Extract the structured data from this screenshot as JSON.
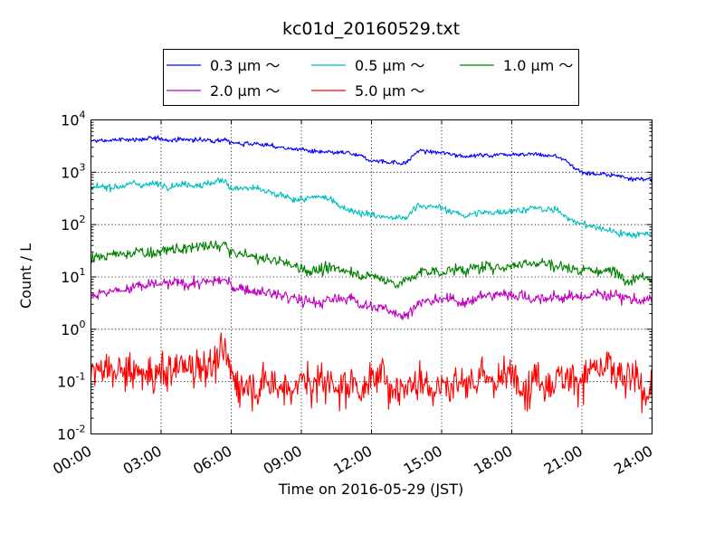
{
  "chart_data": {
    "type": "line",
    "title": "kc01d_20160529.txt",
    "xlabel": "Time on 2016-05-29 (JST)",
    "ylabel": "Count / L",
    "yscale": "log",
    "xlim": [
      "2016-05-29 00:00",
      "2016-05-30 00:00"
    ],
    "ylim": [
      0.01,
      10000
    ],
    "x_ticks": [
      "00:00",
      "03:00",
      "06:00",
      "09:00",
      "12:00",
      "15:00",
      "18:00",
      "21:00",
      "24:00"
    ],
    "y_ticks": [
      {
        "base": "10",
        "exp": "-2",
        "value": 0.01
      },
      {
        "base": "10",
        "exp": "-1",
        "value": 0.1
      },
      {
        "base": "10",
        "exp": "0",
        "value": 1
      },
      {
        "base": "10",
        "exp": "1",
        "value": 10
      },
      {
        "base": "10",
        "exp": "2",
        "value": 100
      },
      {
        "base": "10",
        "exp": "3",
        "value": 1000
      },
      {
        "base": "10",
        "exp": "4",
        "value": 10000
      }
    ],
    "grid": true,
    "legend": "top-center, outside plot area, 3 columns",
    "x": [
      "00:00",
      "01:00",
      "02:00",
      "03:00",
      "04:00",
      "05:00",
      "05:45",
      "06:00",
      "07:00",
      "08:00",
      "09:00",
      "10:00",
      "11:00",
      "12:00",
      "13:00",
      "13:30",
      "14:00",
      "15:00",
      "16:00",
      "17:00",
      "18:00",
      "19:00",
      "20:00",
      "21:00",
      "22:00",
      "23:00",
      "24:00"
    ],
    "series": [
      {
        "name": "0.3 μm ～",
        "color": "#0000ff",
        "noise": 0.02,
        "values": [
          3900,
          4100,
          4300,
          4300,
          4200,
          4100,
          4300,
          3600,
          3600,
          3000,
          2700,
          2300,
          2300,
          1700,
          1550,
          1500,
          2600,
          2300,
          2100,
          2100,
          2300,
          2200,
          2000,
          1000,
          900,
          800,
          700
        ]
      },
      {
        "name": "0.5 μm ～",
        "color": "#00bfbf",
        "noise": 0.03,
        "values": [
          480,
          550,
          600,
          580,
          600,
          600,
          700,
          500,
          480,
          350,
          300,
          330,
          200,
          150,
          130,
          130,
          250,
          200,
          150,
          170,
          190,
          200,
          180,
          100,
          80,
          65,
          70
        ]
      },
      {
        "name": "1.0 μm ～",
        "color": "#008000",
        "noise": 0.05,
        "values": [
          21,
          26,
          30,
          30,
          35,
          37,
          42,
          28,
          24,
          20,
          15,
          13,
          14,
          10,
          8,
          8,
          12,
          13,
          14,
          15,
          17,
          20,
          16,
          14,
          13,
          10,
          11
        ]
      },
      {
        "name": "2.0 μm ～",
        "color": "#bf00bf",
        "noise": 0.05,
        "values": [
          4.5,
          5.5,
          6.5,
          7.0,
          7.5,
          8.0,
          8.5,
          6.5,
          5.5,
          4.5,
          3.5,
          3.3,
          4.0,
          2.7,
          2.1,
          2.0,
          3.2,
          3.5,
          3.6,
          4.3,
          5.0,
          3.8,
          4.0,
          4.2,
          5.0,
          4.0,
          3.2
        ]
      },
      {
        "name": "5.0 μm ～",
        "color": "#ff0000",
        "noise": 0.18,
        "values": [
          0.15,
          0.14,
          0.13,
          0.15,
          0.2,
          0.25,
          0.28,
          0.11,
          0.1,
          0.09,
          0.09,
          0.09,
          0.09,
          0.1,
          0.1,
          0.09,
          0.11,
          0.1,
          0.1,
          0.11,
          0.11,
          0.12,
          0.13,
          0.14,
          0.15,
          0.09,
          0.07
        ]
      }
    ]
  }
}
